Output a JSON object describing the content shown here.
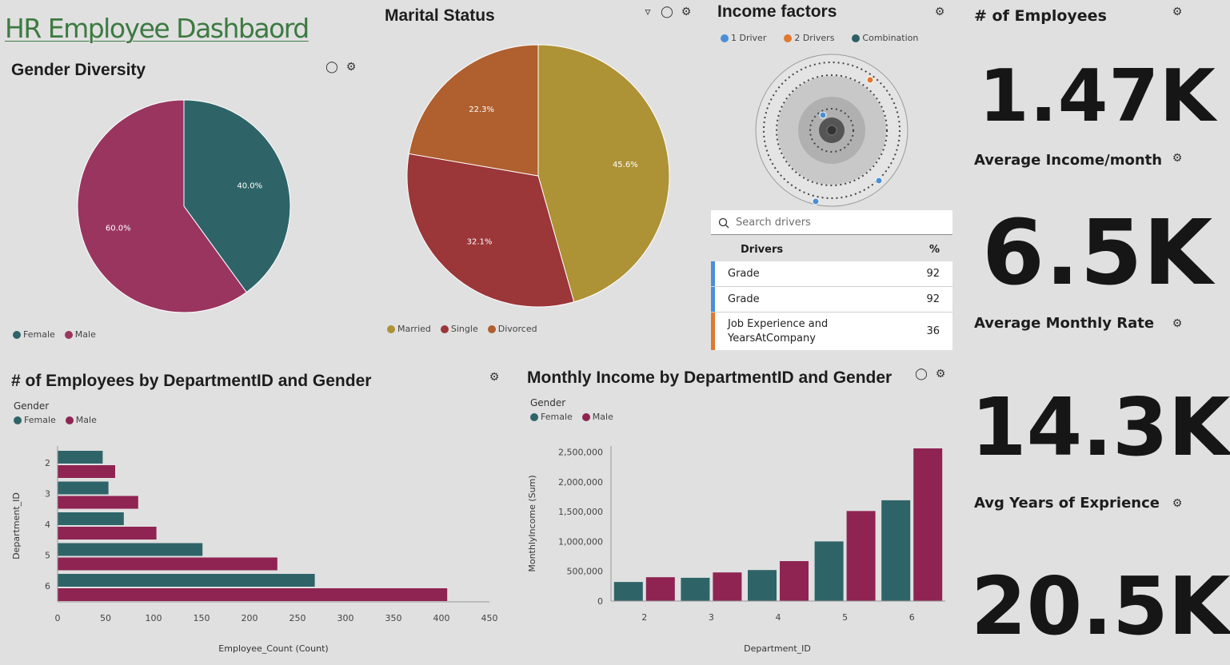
{
  "dashboard": {
    "title": "HR Employee Dashbaord"
  },
  "colors": {
    "female": "#2e6468",
    "male": "#9a3560",
    "male_bar": "#8f2453",
    "married": "#ad9236",
    "single": "#9b3639",
    "divorced": "#b05f2e",
    "driver1": "#4a8fd6",
    "driver2": "#e0782f",
    "combination": "#2e5f63",
    "title_green": "#3d7a42"
  },
  "gender_diversity": {
    "title": "Gender Diversity",
    "legend": [
      "Female",
      "Male"
    ],
    "icons": [
      "lightbulb-icon",
      "settings-icon"
    ]
  },
  "marital_status": {
    "title": "Marital Status",
    "legend": [
      "Married",
      "Single",
      "Divorced"
    ],
    "icons": [
      "filter-icon",
      "lightbulb-icon",
      "settings-icon"
    ]
  },
  "income_factors": {
    "title": "Income factors",
    "legend": [
      "1 Driver",
      "2 Drivers",
      "Combination"
    ],
    "search_placeholder": "Search drivers",
    "table_headers": {
      "drivers": "Drivers",
      "pct": "%"
    },
    "rows": [
      {
        "name": "Grade",
        "pct": "92",
        "color": "#4a8fd6"
      },
      {
        "name": "Grade",
        "pct": "92",
        "color": "#4a8fd6"
      },
      {
        "name": "Job Experience and YearsAtCompany",
        "pct": "36",
        "color": "#e0782f"
      }
    ]
  },
  "kpis": [
    {
      "title": "# of Employees",
      "value": "1.47K"
    },
    {
      "title": "Average Income/month",
      "value": "6.5K"
    },
    {
      "title": "Average Monthly Rate",
      "value": "14.3K"
    },
    {
      "title": "Avg Years of Exprience",
      "value": "20.5K"
    }
  ],
  "employees_by_dept": {
    "title": "# of Employees by DepartmentID and Gender",
    "legend_title": "Gender",
    "legend": [
      "Female",
      "Male"
    ]
  },
  "income_by_dept": {
    "title": "Monthly Income by DepartmentID and Gender",
    "legend_title": "Gender",
    "legend": [
      "Female",
      "Male"
    ]
  },
  "chart_data": [
    {
      "type": "pie",
      "title": "Gender Diversity",
      "categories": [
        "Female",
        "Male"
      ],
      "values": [
        40.0,
        60.0
      ],
      "labels": [
        "40.0%",
        "60.0%"
      ],
      "legend_position": "bottom-left"
    },
    {
      "type": "pie",
      "title": "Marital Status",
      "categories": [
        "Married",
        "Single",
        "Divorced"
      ],
      "values": [
        45.6,
        32.1,
        22.3
      ],
      "labels": [
        "45.6%",
        "32.1%",
        "22.3%"
      ],
      "legend_position": "bottom"
    },
    {
      "type": "bar",
      "orientation": "horizontal",
      "title": "# of Employees by DepartmentID and Gender",
      "categories": [
        "2",
        "3",
        "4",
        "5",
        "6"
      ],
      "series": [
        {
          "name": "Female",
          "values": [
            47,
            53,
            69,
            151,
            268
          ]
        },
        {
          "name": "Male",
          "values": [
            60,
            84,
            103,
            229,
            406
          ]
        }
      ],
      "xlabel": "Employee_Count (Count)",
      "ylabel": "Department_ID",
      "xlim": [
        0,
        450
      ],
      "xticks": [
        "0",
        "50",
        "100",
        "150",
        "200",
        "250",
        "300",
        "350",
        "400",
        "450"
      ],
      "grid": false,
      "legend_position": "top-left"
    },
    {
      "type": "bar",
      "orientation": "vertical",
      "title": "Monthly Income by DepartmentID and Gender",
      "categories": [
        "2",
        "3",
        "4",
        "5",
        "6"
      ],
      "series": [
        {
          "name": "Female",
          "values": [
            320000,
            390000,
            520000,
            1000000,
            1690000
          ]
        },
        {
          "name": "Male",
          "values": [
            400000,
            480000,
            670000,
            1510000,
            2560000
          ]
        }
      ],
      "xlabel": "Department_ID",
      "ylabel": "MonthlyIncome (Sum)",
      "ylim": [
        0,
        2600000
      ],
      "yticks": [
        "0",
        "500,000",
        "1,000,000",
        "1,500,000",
        "2,000,000",
        "2,500,000"
      ],
      "grid": false,
      "legend_position": "top-left"
    }
  ]
}
